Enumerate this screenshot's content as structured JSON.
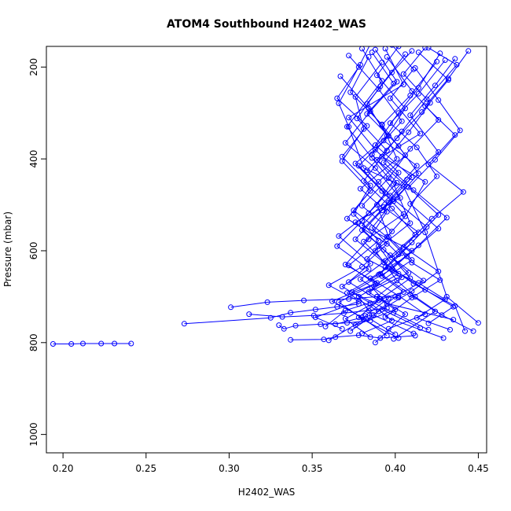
{
  "chart_data": {
    "type": "line",
    "title": "ATOM4 Southbound H2402_WAS",
    "xlabel": "H2402_WAS",
    "ylabel": "Pressure (mbar)",
    "xlim": [
      0.19,
      0.455
    ],
    "ylim": [
      1040,
      155
    ],
    "y_reversed": true,
    "x_ticks": [
      0.2,
      0.25,
      0.3,
      0.35,
      0.4,
      0.45
    ],
    "x_tick_labels": [
      "0.20",
      "0.25",
      "0.30",
      "0.35",
      "0.40",
      "0.45"
    ],
    "y_ticks": [
      200,
      400,
      600,
      800,
      1000
    ],
    "y_tick_labels": [
      "200",
      "400",
      "600",
      "800",
      "1000"
    ],
    "grid": false,
    "legend": "none",
    "marker": "open-circle",
    "color": "#0000ff",
    "series": [
      {
        "x": [
          0.194,
          0.205,
          0.212,
          0.223,
          0.231,
          0.241
        ],
        "y": [
          803,
          803,
          802,
          802,
          802,
          802
        ]
      },
      {
        "x": [
          0.273,
          0.325,
          0.337,
          0.352,
          0.365,
          0.378
        ],
        "y": [
          759,
          746,
          735,
          728,
          722,
          716
        ]
      },
      {
        "x": [
          0.301,
          0.323,
          0.345,
          0.372,
          0.389,
          0.402
        ],
        "y": [
          723,
          712,
          708,
          705,
          700,
          702
        ]
      },
      {
        "x": [
          0.312,
          0.332,
          0.351,
          0.369,
          0.384,
          0.395
        ],
        "y": [
          738,
          744,
          741,
          736,
          730,
          725
        ]
      },
      {
        "x": [
          0.33,
          0.333,
          0.34,
          0.355,
          0.371,
          0.385
        ],
        "y": [
          762,
          770,
          763,
          760,
          757,
          752
        ]
      },
      {
        "x": [
          0.337,
          0.357,
          0.364,
          0.378,
          0.391,
          0.412
        ],
        "y": [
          794,
          793,
          788,
          784,
          790,
          785
        ]
      },
      {
        "x": [
          0.385,
          0.378,
          0.366,
          0.372,
          0.381,
          0.405,
          0.418,
          0.431,
          0.45
        ],
        "y": [
          150,
          200,
          279,
          330,
          420,
          460,
          560,
          700,
          757
        ]
      },
      {
        "x": [
          0.38,
          0.392,
          0.371,
          0.386,
          0.399,
          0.409,
          0.388,
          0.401,
          0.412,
          0.428,
          0.447
        ],
        "y": [
          160,
          230,
          330,
          398,
          455,
          540,
          600,
          665,
          700,
          740,
          775
        ]
      },
      {
        "x": [
          0.394,
          0.405,
          0.372,
          0.388,
          0.402,
          0.389,
          0.396,
          0.41,
          0.386,
          0.395,
          0.435
        ],
        "y": [
          160,
          238,
          310,
          380,
          430,
          500,
          570,
          620,
          680,
          715,
          750
        ]
      },
      {
        "x": [
          0.41,
          0.398,
          0.383,
          0.395,
          0.376,
          0.392,
          0.405,
          0.381,
          0.398,
          0.374,
          0.399,
          0.42
        ],
        "y": [
          165,
          212,
          280,
          350,
          410,
          470,
          520,
          580,
          640,
          690,
          735,
          772
        ]
      },
      {
        "x": [
          0.427,
          0.414,
          0.402,
          0.388,
          0.41,
          0.396,
          0.38,
          0.397,
          0.409,
          0.391,
          0.378,
          0.402
        ],
        "y": [
          170,
          245,
          300,
          370,
          440,
          495,
          555,
          610,
          660,
          705,
          745,
          790
        ]
      },
      {
        "x": [
          0.42,
          0.437,
          0.419,
          0.404,
          0.392,
          0.418,
          0.406,
          0.39,
          0.402,
          0.378,
          0.386,
          0.364
        ],
        "y": [
          158,
          195,
          270,
          340,
          395,
          450,
          525,
          590,
          650,
          700,
          740,
          760
        ]
      },
      {
        "x": [
          0.384,
          0.373,
          0.392,
          0.401,
          0.379,
          0.395,
          0.384,
          0.37,
          0.389,
          0.362,
          0.38,
          0.395
        ],
        "y": [
          178,
          255,
          325,
          400,
          465,
          515,
          575,
          630,
          670,
          710,
          745,
          785
        ]
      },
      {
        "x": [
          0.402,
          0.389,
          0.406,
          0.393,
          0.413,
          0.397,
          0.38,
          0.41,
          0.392,
          0.405,
          0.37,
          0.358
        ],
        "y": [
          155,
          218,
          290,
          360,
          415,
          480,
          545,
          600,
          655,
          690,
          730,
          765
        ]
      },
      {
        "x": [
          0.436,
          0.424,
          0.409,
          0.426,
          0.407,
          0.393,
          0.414,
          0.398,
          0.417,
          0.4,
          0.387,
          0.411
        ],
        "y": [
          182,
          240,
          305,
          385,
          445,
          505,
          560,
          615,
          665,
          700,
          740,
          780
        ]
      },
      {
        "x": [
          0.392,
          0.376,
          0.381,
          0.368,
          0.385,
          0.371,
          0.395,
          0.38,
          0.36,
          0.378,
          0.352,
          0.368
        ],
        "y": [
          190,
          265,
          335,
          405,
          470,
          530,
          585,
          635,
          675,
          710,
          745,
          770
        ]
      },
      {
        "x": [
          0.414,
          0.432,
          0.416,
          0.401,
          0.383,
          0.399,
          0.419,
          0.404,
          0.391,
          0.409,
          0.424,
          0.399
        ],
        "y": [
          168,
          228,
          298,
          355,
          425,
          488,
          548,
          605,
          650,
          695,
          732,
          792
        ]
      },
      {
        "x": [
          0.398,
          0.411,
          0.397,
          0.415,
          0.389,
          0.407,
          0.392,
          0.376,
          0.393,
          0.411,
          0.436,
          0.442
        ],
        "y": [
          152,
          205,
          268,
          345,
          402,
          460,
          512,
          575,
          625,
          672,
          720,
          775
        ]
      },
      {
        "x": [
          0.372,
          0.39,
          0.404,
          0.386,
          0.401,
          0.384,
          0.366,
          0.385,
          0.372,
          0.39,
          0.37,
          0.385
        ],
        "y": [
          175,
          248,
          318,
          390,
          452,
          518,
          568,
          628,
          668,
          708,
          748,
          788
        ]
      },
      {
        "x": [
          0.43,
          0.414,
          0.397,
          0.413,
          0.425,
          0.409,
          0.426,
          0.407,
          0.385,
          0.402,
          0.418,
          0.396
        ],
        "y": [
          185,
          258,
          322,
          375,
          438,
          498,
          552,
          612,
          660,
          698,
          738,
          770
        ]
      },
      {
        "x": [
          0.388,
          0.401,
          0.385,
          0.37,
          0.388,
          0.403,
          0.376,
          0.393,
          0.408,
          0.384,
          0.4,
          0.376
        ],
        "y": [
          162,
          232,
          296,
          365,
          420,
          485,
          538,
          598,
          648,
          690,
          728,
          762
        ]
      },
      {
        "x": [
          0.406,
          0.391,
          0.377,
          0.395,
          0.381,
          0.398,
          0.412,
          0.394,
          0.379,
          0.396,
          0.382,
          0.4
        ],
        "y": [
          172,
          242,
          312,
          382,
          448,
          508,
          565,
          622,
          662,
          703,
          742,
          782
        ]
      },
      {
        "x": [
          0.444,
          0.432,
          0.418,
          0.436,
          0.42,
          0.441,
          0.422,
          0.405,
          0.426,
          0.41,
          0.392,
          0.415
        ],
        "y": [
          165,
          225,
          285,
          348,
          412,
          472,
          530,
          592,
          645,
          688,
          728,
          768
        ]
      },
      {
        "x": [
          0.379,
          0.365,
          0.383,
          0.368,
          0.385,
          0.375,
          0.39,
          0.372,
          0.388,
          0.366,
          0.381,
          0.36
        ],
        "y": [
          195,
          268,
          328,
          395,
          458,
          520,
          578,
          632,
          672,
          712,
          750,
          795
        ]
      },
      {
        "x": [
          0.418,
          0.405,
          0.421,
          0.408,
          0.393,
          0.411,
          0.431,
          0.414,
          0.398,
          0.418,
          0.435,
          0.42
        ],
        "y": [
          158,
          215,
          278,
          342,
          408,
          468,
          528,
          588,
          640,
          685,
          722,
          758
        ]
      },
      {
        "x": [
          0.395,
          0.41,
          0.426,
          0.409,
          0.396,
          0.38,
          0.398,
          0.383,
          0.404,
          0.389,
          0.406,
          0.388
        ],
        "y": [
          178,
          252,
          315,
          378,
          442,
          502,
          558,
          618,
          658,
          700,
          738,
          800
        ]
      },
      {
        "x": [
          0.386,
          0.399,
          0.383,
          0.402,
          0.414,
          0.399,
          0.386,
          0.402,
          0.39,
          0.371,
          0.39,
          0.373
        ],
        "y": [
          168,
          236,
          302,
          372,
          432,
          492,
          550,
          608,
          652,
          692,
          732,
          775
        ]
      },
      {
        "x": [
          0.425,
          0.409,
          0.392,
          0.406,
          0.39,
          0.375,
          0.395,
          0.41,
          0.427,
          0.41,
          0.394,
          0.429
        ],
        "y": [
          188,
          262,
          326,
          392,
          450,
          512,
          570,
          626,
          664,
          702,
          744,
          790
        ]
      },
      {
        "x": [
          0.367,
          0.384,
          0.396,
          0.378,
          0.394,
          0.38,
          0.365,
          0.384,
          0.368,
          0.385,
          0.398,
          0.38
        ],
        "y": [
          220,
          290,
          350,
          415,
          475,
          535,
          590,
          640,
          678,
          714,
          752,
          780
        ]
      },
      {
        "x": [
          0.412,
          0.426,
          0.439,
          0.424,
          0.408,
          0.426,
          0.41,
          0.394,
          0.414,
          0.43,
          0.413,
          0.433
        ],
        "y": [
          202,
          272,
          338,
          402,
          462,
          522,
          582,
          636,
          670,
          706,
          746,
          772
        ]
      }
    ]
  }
}
